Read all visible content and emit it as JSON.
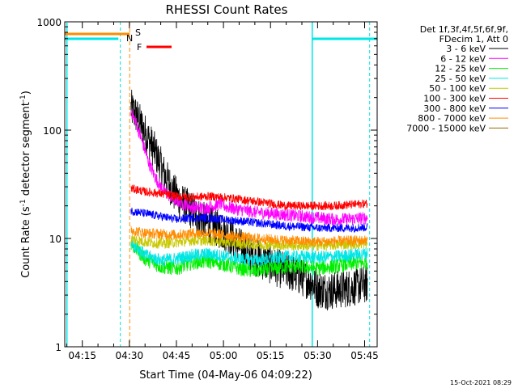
{
  "chart_data": {
    "type": "line",
    "title": "RHESSI Count Rates",
    "xlabel": "Start Time (04-May-06 04:09:22)",
    "ylabel_main": "Count Rate (s",
    "ylabel_sup1": "-1",
    "ylabel_mid": " detector segment",
    "ylabel_sup2": "-1",
    "ylabel_end": ")",
    "y_scale": "log",
    "ylim": [
      1,
      1000
    ],
    "xlim_minutes": [
      249.4,
      349.0
    ],
    "x_ticks": [
      {
        "label": "04:15",
        "minutes": 255
      },
      {
        "label": "04:30",
        "minutes": 270
      },
      {
        "label": "04:45",
        "minutes": 285
      },
      {
        "label": "05:00",
        "minutes": 300
      },
      {
        "label": "05:15",
        "minutes": 315
      },
      {
        "label": "05:30",
        "minutes": 330
      },
      {
        "label": "05:45",
        "minutes": 345
      }
    ],
    "y_ticks": [
      {
        "label": "1",
        "value": 1
      },
      {
        "label": "10",
        "value": 10
      },
      {
        "label": "100",
        "value": 100
      },
      {
        "label": "1000",
        "value": 1000
      }
    ],
    "legend_header": [
      "Det 1f,3f,4f,5f,6f,9f,",
      "FDecim 1, Att 0"
    ],
    "series": [
      {
        "name": "3 - 6 keV",
        "color": "#000000",
        "noise": 0.18,
        "points": [
          [
            270.5,
            160
          ],
          [
            272,
            140
          ],
          [
            275,
            95
          ],
          [
            278,
            65
          ],
          [
            281,
            40
          ],
          [
            284,
            27
          ],
          [
            287,
            21
          ],
          [
            290,
            18
          ],
          [
            293,
            15
          ],
          [
            296,
            13
          ],
          [
            299,
            12
          ],
          [
            302,
            10.5
          ],
          [
            305,
            8.5
          ],
          [
            308,
            7.2
          ],
          [
            312,
            6.3
          ],
          [
            316,
            5.5
          ],
          [
            320,
            5.0
          ],
          [
            324,
            4.5
          ],
          [
            328,
            4.0
          ],
          [
            330,
            3.4
          ],
          [
            334,
            3.3
          ],
          [
            338,
            3.4
          ],
          [
            342,
            3.6
          ],
          [
            346,
            3.8
          ]
        ]
      },
      {
        "name": "6 - 12 keV",
        "color": "#ff00ff",
        "noise": 0.06,
        "points": [
          [
            270.5,
            150
          ],
          [
            272,
            120
          ],
          [
            274,
            80
          ],
          [
            276,
            52
          ],
          [
            278,
            38
          ],
          [
            280,
            30
          ],
          [
            282,
            26
          ],
          [
            284,
            23
          ],
          [
            287,
            21
          ],
          [
            290,
            19.5
          ],
          [
            294,
            19
          ],
          [
            297,
            20
          ],
          [
            299,
            21
          ],
          [
            301,
            19.5
          ],
          [
            305,
            18.5
          ],
          [
            310,
            17.5
          ],
          [
            315,
            17
          ],
          [
            320,
            16.5
          ],
          [
            325,
            16
          ],
          [
            330,
            15.5
          ],
          [
            335,
            15
          ],
          [
            340,
            15
          ],
          [
            346,
            15.5
          ]
        ]
      },
      {
        "name": "12 - 25 keV",
        "color": "#00ee00",
        "noise": 0.07,
        "points": [
          [
            270.5,
            9
          ],
          [
            275,
            6.5
          ],
          [
            280,
            5.5
          ],
          [
            285,
            5.3
          ],
          [
            290,
            6.0
          ],
          [
            295,
            6.2
          ],
          [
            300,
            5.8
          ],
          [
            305,
            5.3
          ],
          [
            310,
            5.0
          ],
          [
            315,
            5.2
          ],
          [
            320,
            5.5
          ],
          [
            325,
            5.5
          ],
          [
            330,
            5.3
          ],
          [
            335,
            5.5
          ],
          [
            340,
            5.8
          ],
          [
            346,
            6.0
          ]
        ]
      },
      {
        "name": "25 - 50 keV",
        "color": "#00e5e5",
        "noise": 0.06,
        "points": [
          [
            270.5,
            9.5
          ],
          [
            275,
            7.0
          ],
          [
            280,
            6.3
          ],
          [
            285,
            6.5
          ],
          [
            290,
            7.0
          ],
          [
            295,
            7.2
          ],
          [
            300,
            6.9
          ],
          [
            305,
            6.5
          ],
          [
            310,
            6.3
          ],
          [
            315,
            6.5
          ],
          [
            320,
            6.8
          ],
          [
            325,
            6.8
          ],
          [
            330,
            6.7
          ],
          [
            335,
            6.8
          ],
          [
            340,
            7.0
          ],
          [
            346,
            7.3
          ]
        ]
      },
      {
        "name": "50 - 100 keV",
        "color": "#c8c800",
        "noise": 0.05,
        "points": [
          [
            270.5,
            10
          ],
          [
            275,
            9.3
          ],
          [
            280,
            9.0
          ],
          [
            285,
            9.2
          ],
          [
            290,
            9.6
          ],
          [
            295,
            9.6
          ],
          [
            300,
            9.3
          ],
          [
            305,
            9.0
          ],
          [
            310,
            8.8
          ],
          [
            315,
            8.7
          ],
          [
            320,
            8.7
          ],
          [
            325,
            8.6
          ],
          [
            330,
            8.6
          ],
          [
            335,
            8.7
          ],
          [
            340,
            8.9
          ],
          [
            346,
            9.0
          ]
        ]
      },
      {
        "name": "100 - 300 keV",
        "color": "#ff0000",
        "noise": 0.04,
        "points": [
          [
            270.5,
            29
          ],
          [
            275,
            27
          ],
          [
            280,
            26
          ],
          [
            285,
            24.5
          ],
          [
            290,
            24
          ],
          [
            295,
            24.5
          ],
          [
            300,
            24
          ],
          [
            305,
            23
          ],
          [
            310,
            22
          ],
          [
            315,
            21
          ],
          [
            320,
            20
          ],
          [
            325,
            20
          ],
          [
            330,
            20
          ],
          [
            335,
            20
          ],
          [
            340,
            20.5
          ],
          [
            346,
            21
          ]
        ]
      },
      {
        "name": "300 - 800 keV",
        "color": "#0000ff",
        "noise": 0.04,
        "points": [
          [
            270.5,
            18
          ],
          [
            275,
            17
          ],
          [
            280,
            16
          ],
          [
            285,
            15
          ],
          [
            290,
            15.5
          ],
          [
            295,
            15.5
          ],
          [
            300,
            15
          ],
          [
            305,
            14.5
          ],
          [
            310,
            14
          ],
          [
            315,
            13.5
          ],
          [
            320,
            13
          ],
          [
            325,
            12.8
          ],
          [
            330,
            12.5
          ],
          [
            335,
            12.5
          ],
          [
            340,
            12.5
          ],
          [
            346,
            12.7
          ]
        ]
      },
      {
        "name": "800 - 7000 keV",
        "color": "#ff8c00",
        "noise": 0.05,
        "points": [
          [
            270.5,
            12
          ],
          [
            275,
            11.2
          ],
          [
            280,
            11.0
          ],
          [
            285,
            10.8
          ],
          [
            290,
            11.2
          ],
          [
            295,
            11.2
          ],
          [
            300,
            10.8
          ],
          [
            305,
            10.3
          ],
          [
            310,
            10.0
          ],
          [
            315,
            9.8
          ],
          [
            320,
            9.6
          ],
          [
            325,
            9.4
          ],
          [
            330,
            9.3
          ],
          [
            335,
            9.4
          ],
          [
            340,
            9.5
          ],
          [
            346,
            9.6
          ]
        ]
      },
      {
        "name": "7000 - 15000 keV",
        "color": "#9a6a00",
        "noise": 0.0,
        "points": []
      }
    ],
    "attenuator_state_label": "S",
    "attenuator_state_color": "#ff8c00",
    "flare_flag_label": "F",
    "flare_flag_color": "#ff0000",
    "night_flag_label": "N",
    "night_flag_color": "#00e5e5",
    "timestamp": "15-Oct-2021 08:29"
  }
}
